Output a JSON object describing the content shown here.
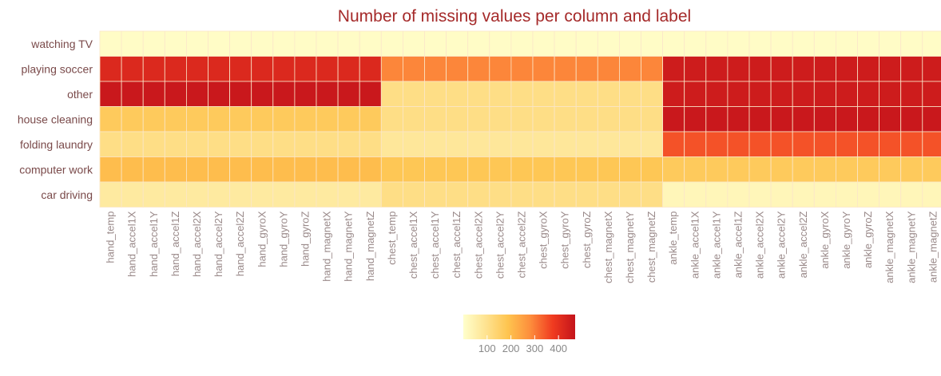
{
  "chart_data": {
    "type": "heatmap",
    "title": "Number of missing values per column and label",
    "xlabel": "",
    "ylabel": "",
    "rows": [
      "watching TV",
      "playing soccer",
      "other",
      "house cleaning",
      "folding laundry",
      "computer work",
      "car driving"
    ],
    "columns": [
      "hand_temp",
      "hand_accel1X",
      "hand_accel1Y",
      "hand_accel1Z",
      "hand_accel2X",
      "hand_accel2Y",
      "hand_accel2Z",
      "hand_gyroX",
      "hand_gyroY",
      "hand_gyroZ",
      "hand_magnetX",
      "hand_magnetY",
      "hand_magnetZ",
      "chest_temp",
      "chest_accel1X",
      "chest_accel1Y",
      "chest_accel1Z",
      "chest_accel2X",
      "chest_accel2Y",
      "chest_accel2Z",
      "chest_gyroX",
      "chest_gyroY",
      "chest_gyroZ",
      "chest_magnetX",
      "chest_magnetY",
      "chest_magnetZ",
      "ankle_temp",
      "ankle_accel1X",
      "ankle_accel1Y",
      "ankle_accel1Z",
      "ankle_accel2X",
      "ankle_accel2Y",
      "ankle_accel2Z",
      "ankle_gyroX",
      "ankle_gyroY",
      "ankle_gyroZ",
      "ankle_magnetX",
      "ankle_magnetY",
      "ankle_magnetZ"
    ],
    "group_values": {
      "watching TV": {
        "hand": 10,
        "chest": 10,
        "ankle": 10
      },
      "playing soccer": {
        "hand": 420,
        "chest": 290,
        "ankle": 450
      },
      "other": {
        "hand": 460,
        "chest": 110,
        "ankle": 450
      },
      "house cleaning": {
        "hand": 170,
        "chest": 110,
        "ankle": 460
      },
      "folding laundry": {
        "hand": 110,
        "chest": 80,
        "ankle": 350
      },
      "computer work": {
        "hand": 200,
        "chest": 180,
        "ankle": 170
      },
      "car driving": {
        "hand": 70,
        "chest": 110,
        "ankle": 30
      }
    },
    "colorbar": {
      "ticks": [
        100,
        200,
        300,
        400
      ],
      "range": [
        0,
        470
      ],
      "colors": [
        "#ffffcc",
        "#fee391",
        "#fec44f",
        "#fd8d3c",
        "#f03b20",
        "#c4141b"
      ]
    },
    "grid": true,
    "legend_position": "bottom"
  }
}
